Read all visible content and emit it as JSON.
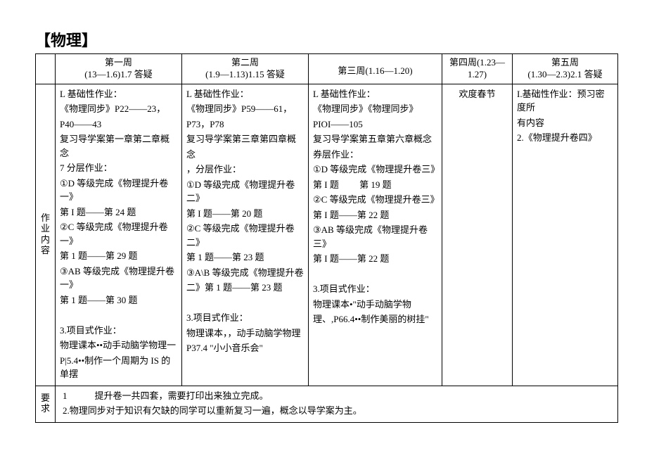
{
  "title": "【物理】",
  "header": {
    "w1": {
      "l1": "第一周",
      "l2": "(13—1.6)1.7 答疑"
    },
    "w2": {
      "l1": "第二周",
      "l2": "(1.9—1.13)1.15 答疑"
    },
    "w3": {
      "l1": "第三周(1.16—1.20)"
    },
    "w4": {
      "l1": "第四周(1.23—",
      "l2": "1.27)"
    },
    "w5": {
      "l1": "第五周",
      "l2": "(1.30—2.3)2.1 答疑"
    }
  },
  "rowlabel1": "作业内容",
  "rowlabel2": "要求",
  "week1": [
    "L 基础性作业：",
    "《物理同步》P22——23，",
    "P40——43",
    "复习导学案第一章第二章概念",
    "7 分层作业：",
    "①D 等级完成《物理提升卷一》",
    "第 I 题——第 24 题",
    "②C 等级完成《物理提升卷一》",
    "第 1 题——第 29 题",
    "③AB 等级完成《物理提升卷一》",
    "第 1 题——第 30 题",
    "",
    "3.项目式作业：",
    "物理课本••动手动脑学物理一",
    "P|5.4••制作一个周期为 IS 的单摆"
  ],
  "week2": [
    "L 基础性作业：",
    "《物理同步》P59——61，",
    "P73，P78",
    "复习导学案第三章第四章概",
    "念",
    "，分层作业：",
    "①D 等级完成《物理提升卷二》",
    "第 I 题——第 20 题",
    "②C 等级完成《物理提升卷二》",
    "第 1 题——第 23 题",
    "③A\\B 等级完成《物理提升卷",
    "二》第 1 题——第 23 题",
    "",
    "3.项目式作业：",
    "物理课本，，动手动脑学物理",
    "P37.4 \"小小音乐会\""
  ],
  "week3": [
    "L 基础性作业：",
    "《物理同步》《物理同步》",
    "PIOI——105",
    "复习导学案第五章第六章概念",
    "券层作业：",
    "①D 等级完成《物理提升卷三》",
    "第 I 题　　  第 19 题",
    "②C 等级完成《物理提升卷三》",
    "第 I 题——第 22 题",
    "③AB 等级完成《物理提升卷三》",
    "第 I 题——第 22 题",
    "",
    "3.项目式作业：",
    "物理课本•\"动手动脑学物",
    "理、,P66.4••制作美丽的树挂\""
  ],
  "week4": "欢度春节",
  "week5": [
    "I.基础性作业：预习密度所",
    "有内容",
    "2.《物理提升卷四》"
  ],
  "req": [
    "1　　　提升卷一共四套，需要打印出来独立完成。",
    "2.物理同步对于知识有欠缺的同学可以重新复习一遍，概念以导学案为主。"
  ]
}
